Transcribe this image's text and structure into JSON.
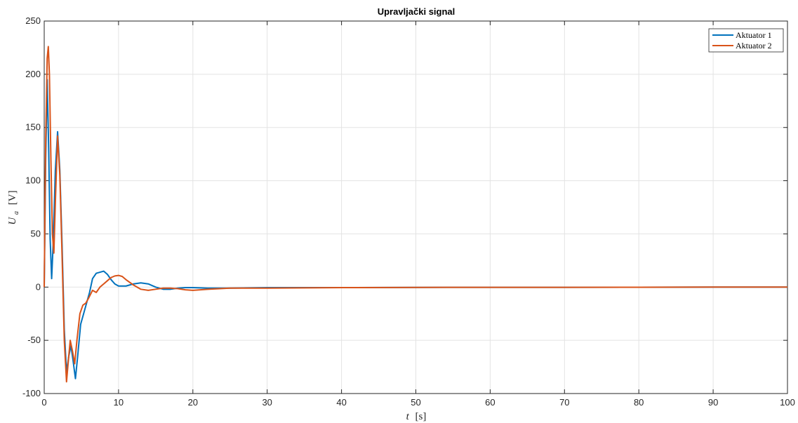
{
  "chart_data": {
    "type": "line",
    "title": "Upravljački signal",
    "xlabel_var": "t",
    "xlabel_unit": "[s]",
    "ylabel_var": "U",
    "ylabel_sub": "a",
    "ylabel_unit": "[V]",
    "xlim": [
      0,
      100
    ],
    "ylim": [
      -100,
      250
    ],
    "xticks": [
      0,
      10,
      20,
      30,
      40,
      50,
      60,
      70,
      80,
      90,
      100
    ],
    "yticks": [
      -100,
      -50,
      0,
      50,
      100,
      150,
      200,
      250
    ],
    "grid": true,
    "legend_position": "top-right",
    "series": [
      {
        "name": "Aktuator 1",
        "color": "#0072BD",
        "points": [
          [
            0,
            0
          ],
          [
            0.2,
            120
          ],
          [
            0.4,
            195
          ],
          [
            0.6,
            130
          ],
          [
            0.8,
            45
          ],
          [
            1.0,
            8
          ],
          [
            1.2,
            40
          ],
          [
            1.5,
            110
          ],
          [
            1.8,
            146
          ],
          [
            2.1,
            110
          ],
          [
            2.4,
            40
          ],
          [
            2.7,
            -40
          ],
          [
            3.0,
            -80
          ],
          [
            3.3,
            -65
          ],
          [
            3.6,
            -55
          ],
          [
            3.9,
            -70
          ],
          [
            4.2,
            -86
          ],
          [
            4.5,
            -65
          ],
          [
            4.9,
            -35
          ],
          [
            5.3,
            -25
          ],
          [
            5.7,
            -15
          ],
          [
            6.1,
            -5
          ],
          [
            6.5,
            8
          ],
          [
            7.0,
            13
          ],
          [
            7.5,
            14
          ],
          [
            8.0,
            15
          ],
          [
            8.5,
            12
          ],
          [
            9.0,
            7
          ],
          [
            9.5,
            3
          ],
          [
            10.0,
            1
          ],
          [
            11.0,
            1
          ],
          [
            12.0,
            3
          ],
          [
            13.0,
            4
          ],
          [
            14.0,
            3
          ],
          [
            15.0,
            0
          ],
          [
            16.0,
            -2
          ],
          [
            17.0,
            -2
          ],
          [
            18.0,
            -1
          ],
          [
            19.0,
            -0.5
          ],
          [
            20.0,
            -0.5
          ],
          [
            22.0,
            -1
          ],
          [
            25.0,
            -1
          ],
          [
            30.0,
            -0.5
          ],
          [
            40.0,
            -0.5
          ],
          [
            50.0,
            -0.3
          ],
          [
            60.0,
            -0.2
          ],
          [
            70.0,
            -0.2
          ],
          [
            80.0,
            -0.1
          ],
          [
            90.0,
            0
          ],
          [
            100.0,
            0
          ]
        ]
      },
      {
        "name": "Aktuator 2",
        "color": "#D95319",
        "points": [
          [
            0,
            0
          ],
          [
            0.2,
            140
          ],
          [
            0.4,
            215
          ],
          [
            0.55,
            226
          ],
          [
            0.7,
            200
          ],
          [
            0.9,
            120
          ],
          [
            1.1,
            50
          ],
          [
            1.3,
            32
          ],
          [
            1.5,
            80
          ],
          [
            1.8,
            142
          ],
          [
            2.1,
            105
          ],
          [
            2.4,
            30
          ],
          [
            2.7,
            -50
          ],
          [
            3.0,
            -89
          ],
          [
            3.3,
            -65
          ],
          [
            3.5,
            -50
          ],
          [
            3.8,
            -60
          ],
          [
            4.1,
            -72
          ],
          [
            4.4,
            -50
          ],
          [
            4.8,
            -25
          ],
          [
            5.2,
            -17
          ],
          [
            5.6,
            -15
          ],
          [
            6.0,
            -10
          ],
          [
            6.5,
            -3
          ],
          [
            7.0,
            -5
          ],
          [
            7.5,
            0
          ],
          [
            8.0,
            3
          ],
          [
            8.5,
            6
          ],
          [
            9.0,
            9
          ],
          [
            9.5,
            10.5
          ],
          [
            10.0,
            11
          ],
          [
            10.5,
            10
          ],
          [
            11.0,
            7
          ],
          [
            12.0,
            2
          ],
          [
            13.0,
            -2
          ],
          [
            14.0,
            -3
          ],
          [
            15.0,
            -2
          ],
          [
            16.0,
            -1
          ],
          [
            17.0,
            -1
          ],
          [
            18.0,
            -1.5
          ],
          [
            19.0,
            -2.5
          ],
          [
            20.0,
            -3
          ],
          [
            22.0,
            -2
          ],
          [
            25.0,
            -1
          ],
          [
            30.0,
            -1
          ],
          [
            40.0,
            -0.5
          ],
          [
            50.0,
            -0.3
          ],
          [
            60.0,
            -0.2
          ],
          [
            70.0,
            -0.2
          ],
          [
            80.0,
            -0.1
          ],
          [
            90.0,
            0
          ],
          [
            100.0,
            0
          ]
        ]
      }
    ]
  }
}
